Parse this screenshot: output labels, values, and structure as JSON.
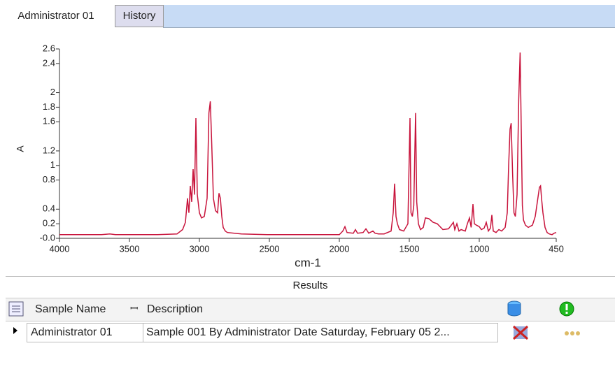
{
  "tabs": [
    "Administrator 01",
    "History"
  ],
  "chart_data": {
    "type": "line",
    "xlabel": "cm-1",
    "ylabel": "A",
    "color": "#c8143c",
    "xlim": [
      4000,
      450
    ],
    "xticks": [
      4000,
      3500,
      3000,
      2500,
      2000,
      1500,
      1000,
      450
    ],
    "ylim": [
      0,
      2.6
    ],
    "yticks": [
      {
        "value": 0,
        "label": "-0.0"
      },
      0.2,
      0.4,
      0.8,
      1.0,
      1.2,
      1.6,
      1.8,
      2.0,
      2.4,
      2.6
    ],
    "x": [
      4000,
      3700,
      3640,
      3600,
      3300,
      3160,
      3120,
      3100,
      3085,
      3075,
      3065,
      3055,
      3045,
      3035,
      3025,
      3015,
      3000,
      2985,
      2965,
      2945,
      2932,
      2922,
      2912,
      2900,
      2885,
      2870,
      2860,
      2850,
      2840,
      2830,
      2815,
      2800,
      2700,
      2500,
      2200,
      2000,
      1975,
      1960,
      1945,
      1900,
      1885,
      1870,
      1830,
      1810,
      1790,
      1760,
      1745,
      1720,
      1680,
      1630,
      1615,
      1605,
      1595,
      1585,
      1570,
      1540,
      1510,
      1495,
      1488,
      1478,
      1468,
      1455,
      1447,
      1435,
      1420,
      1400,
      1385,
      1360,
      1330,
      1300,
      1260,
      1220,
      1200,
      1185,
      1175,
      1160,
      1145,
      1130,
      1100,
      1085,
      1070,
      1058,
      1045,
      1035,
      1020,
      1000,
      985,
      965,
      950,
      935,
      920,
      910,
      900,
      880,
      860,
      840,
      815,
      800,
      790,
      780,
      772,
      762,
      752,
      742,
      730,
      718,
      708,
      700,
      692,
      684,
      670,
      650,
      620,
      600,
      585,
      570,
      562,
      555,
      545,
      530,
      515,
      500,
      480,
      465,
      450
    ],
    "values": [
      0.05,
      0.05,
      0.06,
      0.05,
      0.05,
      0.06,
      0.12,
      0.22,
      0.55,
      0.35,
      0.72,
      0.5,
      0.95,
      0.6,
      1.65,
      0.6,
      0.35,
      0.28,
      0.3,
      0.55,
      1.72,
      1.88,
      1.3,
      0.55,
      0.38,
      0.35,
      0.62,
      0.55,
      0.3,
      0.15,
      0.1,
      0.08,
      0.06,
      0.05,
      0.05,
      0.05,
      0.1,
      0.16,
      0.08,
      0.07,
      0.12,
      0.07,
      0.08,
      0.13,
      0.07,
      0.1,
      0.07,
      0.06,
      0.06,
      0.1,
      0.35,
      0.75,
      0.3,
      0.2,
      0.12,
      0.1,
      0.2,
      1.65,
      0.35,
      0.3,
      0.45,
      1.72,
      0.5,
      0.2,
      0.12,
      0.15,
      0.28,
      0.27,
      0.22,
      0.2,
      0.12,
      0.13,
      0.18,
      0.22,
      0.12,
      0.2,
      0.1,
      0.12,
      0.1,
      0.2,
      0.28,
      0.15,
      0.47,
      0.2,
      0.18,
      0.16,
      0.12,
      0.14,
      0.22,
      0.1,
      0.14,
      0.32,
      0.1,
      0.08,
      0.12,
      0.1,
      0.15,
      0.35,
      1.0,
      1.5,
      1.58,
      0.9,
      0.35,
      0.3,
      0.6,
      1.9,
      2.55,
      1.5,
      0.45,
      0.25,
      0.18,
      0.15,
      0.18,
      0.3,
      0.5,
      0.7,
      0.72,
      0.55,
      0.35,
      0.15,
      0.08,
      0.06,
      0.05,
      0.07,
      0.08
    ]
  },
  "results": {
    "title": "Results",
    "columns": [
      "Sample Name",
      "Description"
    ],
    "rows": [
      [
        "Administrator 01",
        "Sample 001 By Administrator Date Saturday, February 05 2..."
      ]
    ]
  }
}
